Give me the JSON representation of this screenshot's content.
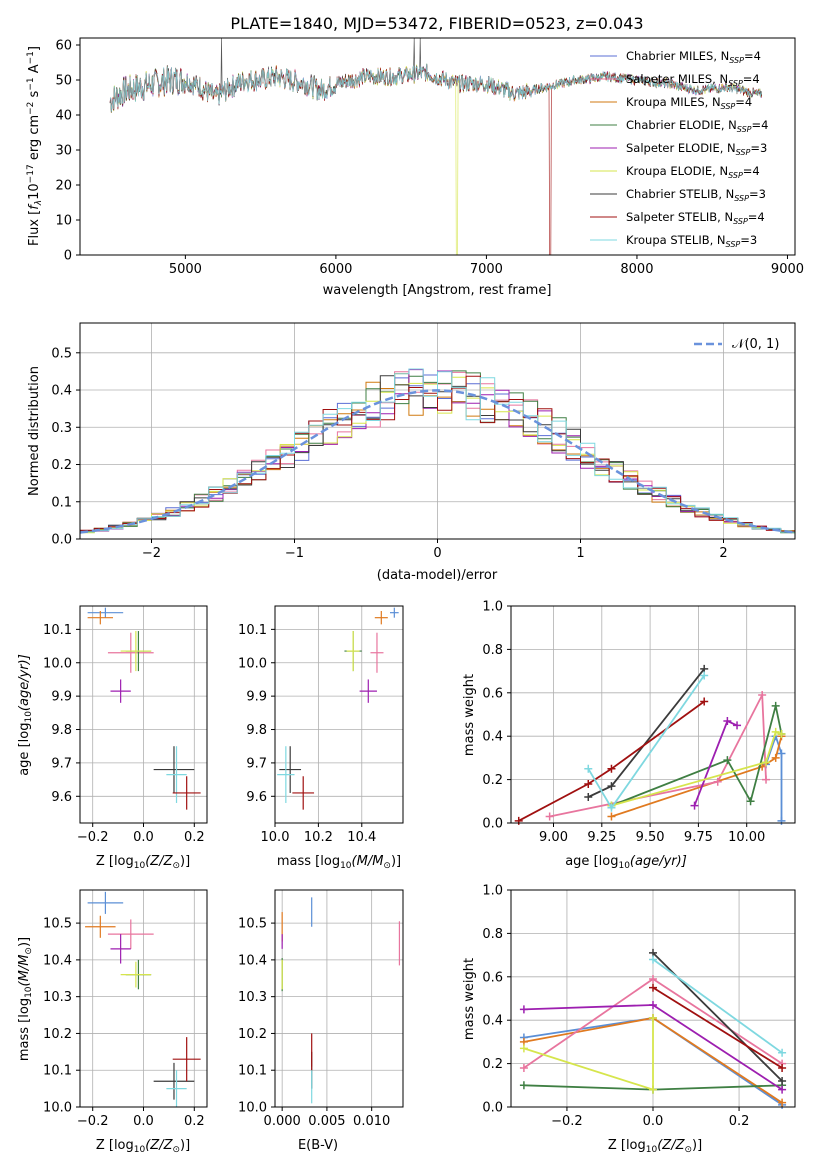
{
  "chart_data": [
    {
      "type": "line",
      "title": "PLATE=1840, MJD=53472, FIBERID=0523, z=0.043",
      "xlabel": "wavelength [Angstrom, rest frame]",
      "ylabel_parts": {
        "a": "Flux [",
        "b": "f",
        "c": "λ",
        "d": "10",
        "e": "−17",
        "f": " erg cm",
        "g": "−2",
        "h": " s",
        "i": "−1",
        "j": " A",
        "k": "−1",
        "l": "]"
      },
      "xlim": [
        4300,
        9050
      ],
      "ylim": [
        0,
        62
      ],
      "xticks": [
        5000,
        6000,
        7000,
        8000,
        9000
      ],
      "yticks": [
        0,
        10,
        20,
        30,
        40,
        50,
        60
      ],
      "spectrum_shape": {
        "x": [
          4500,
          4600,
          4700,
          4800,
          4900,
          5000,
          5100,
          5200,
          5300,
          5400,
          5500,
          5600,
          5700,
          5800,
          5900,
          6000,
          6200,
          6400,
          6600,
          6800,
          7000,
          7200,
          7400,
          7600,
          7800,
          8000,
          8200,
          8400,
          8600,
          8800
        ],
        "y": [
          44,
          47,
          48,
          49,
          50,
          50,
          48,
          45,
          48,
          50,
          50,
          51,
          50,
          49,
          47,
          49,
          51,
          51,
          52,
          49,
          49,
          46,
          48,
          50,
          51,
          50,
          49,
          47,
          48,
          46
        ]
      },
      "series": [
        {
          "name_a": "Chabrier MILES, N",
          "name_sub": "SSP",
          "name_b": "=4",
          "color": "#5b6fd6"
        },
        {
          "name_a": "Salpeter MILES, N",
          "name_sub": "SSP",
          "name_b": "=4",
          "color": "#e8759e"
        },
        {
          "name_a": "Kroupa MILES, N",
          "name_sub": "SSP",
          "name_b": "=4",
          "color": "#d07a10"
        },
        {
          "name_a": "Chabrier ELODIE, N",
          "name_sub": "SSP",
          "name_b": "=4",
          "color": "#3f7f43"
        },
        {
          "name_a": "Salpeter ELODIE, N",
          "name_sub": "SSP",
          "name_b": "=3",
          "color": "#9d1fb0"
        },
        {
          "name_a": "Kroupa ELODIE, N",
          "name_sub": "SSP",
          "name_b": "=4",
          "color": "#d6e54c"
        },
        {
          "name_a": "Chabrier STELIB, N",
          "name_sub": "SSP",
          "name_b": "=3",
          "color": "#3b3b3b"
        },
        {
          "name_a": "Salpeter STELIB, N",
          "name_sub": "SSP",
          "name_b": "=4",
          "color": "#a01010"
        },
        {
          "name_a": "Kroupa STELIB, N",
          "name_sub": "SSP",
          "name_b": "=3",
          "color": "#7fd8e0"
        }
      ]
    },
    {
      "type": "histogram",
      "xlabel": "(data-model)/error",
      "ylabel": "Normed distribution",
      "xlim": [
        -2.5,
        2.5
      ],
      "ylim": [
        0,
        0.58
      ],
      "xticks": [
        -2,
        -1,
        0,
        1,
        2
      ],
      "xtick_labels": [
        "−2",
        "−1",
        "0",
        "1",
        "2"
      ],
      "yticks": [
        0.0,
        0.1,
        0.2,
        0.3,
        0.4,
        0.5
      ],
      "ytick_labels": [
        "0.0",
        "0.1",
        "0.2",
        "0.3",
        "0.4",
        "0.5"
      ],
      "bin_width": 0.1,
      "legend": "𝒩(0, 1)",
      "grid": true
    },
    {
      "type": "scatter",
      "name": "age-vs-Z",
      "xlabel_a": "Z [",
      "xlabel_b": "log",
      "xlabel_c": "10",
      "xlabel_d": "(Z/Z",
      "xlabel_e": "⊙",
      "xlabel_f": ")]",
      "ylabel_a": "age  [",
      "ylabel_b": "log",
      "ylabel_c": "10",
      "ylabel_d": "(age/yr)]",
      "xlim": [
        -0.25,
        0.25
      ],
      "ylim": [
        9.52,
        10.17
      ],
      "xticks": [
        -0.2,
        0.0,
        0.2
      ],
      "xtick_labels": [
        "−0.2",
        "0.0",
        "0.2"
      ],
      "yticks": [
        9.6,
        9.7,
        9.8,
        9.9,
        10.0,
        10.1
      ],
      "ytick_labels": [
        "9.6",
        "9.7",
        "9.8",
        "9.9",
        "10.0",
        "10.1"
      ],
      "points": [
        {
          "x": -0.15,
          "y": 10.15,
          "xerr": 0.07,
          "yerr": 0.015,
          "color": "#5b8fd6"
        },
        {
          "x": -0.17,
          "y": 10.135,
          "xerr": 0.05,
          "yerr": 0.02,
          "color": "#e07a20"
        },
        {
          "x": -0.05,
          "y": 10.03,
          "xerr": 0.09,
          "yerr": 0.06,
          "color": "#e8759e"
        },
        {
          "x": -0.02,
          "y": 10.035,
          "xerr": 0.05,
          "yerr": 0.06,
          "color": "#3f7f43"
        },
        {
          "x": -0.03,
          "y": 10.035,
          "xerr": 0.06,
          "yerr": 0.06,
          "color": "#d6e54c"
        },
        {
          "x": -0.09,
          "y": 9.915,
          "xerr": 0.04,
          "yerr": 0.035,
          "color": "#9d1fb0"
        },
        {
          "x": 0.12,
          "y": 9.68,
          "xerr": 0.08,
          "yerr": 0.07,
          "color": "#3b3b3b"
        },
        {
          "x": 0.13,
          "y": 9.665,
          "xerr": 0.04,
          "yerr": 0.085,
          "color": "#7fd8e0"
        },
        {
          "x": 0.17,
          "y": 9.61,
          "xerr": 0.055,
          "yerr": 0.05,
          "color": "#a01010"
        }
      ]
    },
    {
      "type": "scatter",
      "name": "age-vs-mass",
      "xlabel_a": "mass [",
      "xlabel_b": "log",
      "xlabel_c": "10",
      "xlabel_d": "(M/M",
      "xlabel_e": "⊙",
      "xlabel_f": ")]",
      "xlim": [
        10.0,
        10.59
      ],
      "ylim": [
        9.52,
        10.17
      ],
      "xticks": [
        10.0,
        10.2,
        10.4
      ],
      "xtick_labels": [
        "10.0",
        "10.2",
        "10.4"
      ],
      "yticks": [
        9.6,
        9.7,
        9.8,
        9.9,
        10.0,
        10.1
      ],
      "ytick_labels": [
        "9.6",
        "9.7",
        "9.8",
        "9.9",
        "10.0",
        "10.1"
      ],
      "points": [
        {
          "x": 10.55,
          "y": 10.15,
          "xerr": 0.02,
          "yerr": 0.015,
          "color": "#5b8fd6"
        },
        {
          "x": 10.49,
          "y": 10.135,
          "xerr": 0.03,
          "yerr": 0.02,
          "color": "#e07a20"
        },
        {
          "x": 10.47,
          "y": 10.03,
          "xerr": 0.03,
          "yerr": 0.06,
          "color": "#e8759e"
        },
        {
          "x": 10.36,
          "y": 10.035,
          "xerr": 0.04,
          "yerr": 0.06,
          "color": "#3f7f43"
        },
        {
          "x": 10.36,
          "y": 10.035,
          "xerr": 0.03,
          "yerr": 0.06,
          "color": "#d6e54c"
        },
        {
          "x": 10.43,
          "y": 9.915,
          "xerr": 0.04,
          "yerr": 0.035,
          "color": "#9d1fb0"
        },
        {
          "x": 10.07,
          "y": 9.68,
          "xerr": 0.05,
          "yerr": 0.07,
          "color": "#3b3b3b"
        },
        {
          "x": 10.05,
          "y": 9.665,
          "xerr": 0.04,
          "yerr": 0.085,
          "color": "#7fd8e0"
        },
        {
          "x": 10.13,
          "y": 9.61,
          "xerr": 0.05,
          "yerr": 0.05,
          "color": "#a01010"
        }
      ]
    },
    {
      "type": "line",
      "name": "mass-weight-vs-age",
      "xlabel_a": "age  [",
      "xlabel_b": "log",
      "xlabel_c": "10",
      "xlabel_d": "(age/yr)]",
      "ylabel": "mass weight",
      "xlim": [
        8.78,
        10.25
      ],
      "ylim": [
        0,
        1.0
      ],
      "xticks": [
        9.0,
        9.25,
        9.5,
        9.75,
        10.0
      ],
      "xtick_labels": [
        "9.00",
        "9.25",
        "9.50",
        "9.75",
        "10.00"
      ],
      "yticks": [
        0.0,
        0.2,
        0.4,
        0.6,
        0.8,
        1.0
      ],
      "ytick_labels": [
        "0.0",
        "0.2",
        "0.4",
        "0.6",
        "0.8",
        "1.0"
      ],
      "grid": true,
      "series": [
        {
          "color": "#5b8fd6",
          "x": [
            10.18,
            10.18,
            10.15,
            10.1
          ],
          "y": [
            0.01,
            0.32,
            0.4,
            0.27
          ]
        },
        {
          "color": "#e07a20",
          "x": [
            9.3,
            10.08,
            10.15,
            10.18
          ],
          "y": [
            0.03,
            0.26,
            0.3,
            0.4
          ]
        },
        {
          "color": "#e8759e",
          "x": [
            8.98,
            9.85,
            10.08,
            10.1
          ],
          "y": [
            0.03,
            0.19,
            0.59,
            0.2
          ]
        },
        {
          "color": "#3f7f43",
          "x": [
            9.3,
            9.9,
            10.02,
            10.15,
            10.18
          ],
          "y": [
            0.08,
            0.29,
            0.1,
            0.54,
            0.41
          ]
        },
        {
          "color": "#9d1fb0",
          "x": [
            9.73,
            9.9,
            9.95
          ],
          "y": [
            0.08,
            0.47,
            0.45
          ]
        },
        {
          "color": "#d6e54c",
          "x": [
            9.3,
            10.1,
            10.15,
            10.18
          ],
          "y": [
            0.08,
            0.28,
            0.42,
            0.41
          ]
        },
        {
          "color": "#3b3b3b",
          "x": [
            9.18,
            9.3,
            9.78
          ],
          "y": [
            0.12,
            0.17,
            0.71
          ]
        },
        {
          "color": "#a01010",
          "x": [
            8.82,
            9.18,
            9.3,
            9.78
          ],
          "y": [
            0.01,
            0.18,
            0.25,
            0.56
          ]
        },
        {
          "color": "#7fd8e0",
          "x": [
            9.18,
            9.3,
            9.78
          ],
          "y": [
            0.25,
            0.07,
            0.68
          ]
        }
      ]
    },
    {
      "type": "scatter",
      "name": "mass-vs-Z",
      "xlabel_a": "Z [",
      "xlabel_b": "log",
      "xlabel_c": "10",
      "xlabel_d": "(Z/Z",
      "xlabel_e": "⊙",
      "xlabel_f": ")]",
      "ylabel_a": "mass [",
      "ylabel_b": "log",
      "ylabel_c": "10",
      "ylabel_d": "(M/M",
      "ylabel_e": "⊙",
      "ylabel_f": ")]",
      "xlim": [
        -0.25,
        0.25
      ],
      "ylim": [
        10.0,
        10.59
      ],
      "xticks": [
        -0.2,
        0.0,
        0.2
      ],
      "xtick_labels": [
        "−0.2",
        "0.0",
        "0.2"
      ],
      "yticks": [
        10.0,
        10.1,
        10.2,
        10.3,
        10.4,
        10.5
      ],
      "ytick_labels": [
        "10.0",
        "10.1",
        "10.2",
        "10.3",
        "10.4",
        "10.5"
      ],
      "points": [
        {
          "x": -0.15,
          "y": 10.555,
          "xerr": 0.07,
          "yerr": 0.03,
          "color": "#5b8fd6"
        },
        {
          "x": -0.17,
          "y": 10.49,
          "xerr": 0.06,
          "yerr": 0.03,
          "color": "#e07a20"
        },
        {
          "x": -0.05,
          "y": 10.47,
          "xerr": 0.09,
          "yerr": 0.04,
          "color": "#e8759e"
        },
        {
          "x": -0.02,
          "y": 10.36,
          "xerr": 0.05,
          "yerr": 0.04,
          "color": "#3f7f43"
        },
        {
          "x": -0.03,
          "y": 10.36,
          "xerr": 0.06,
          "yerr": 0.035,
          "color": "#d6e54c"
        },
        {
          "x": -0.09,
          "y": 10.43,
          "xerr": 0.04,
          "yerr": 0.04,
          "color": "#9d1fb0"
        },
        {
          "x": 0.12,
          "y": 10.07,
          "xerr": 0.08,
          "yerr": 0.05,
          "color": "#3b3b3b"
        },
        {
          "x": 0.13,
          "y": 10.05,
          "xerr": 0.04,
          "yerr": 0.05,
          "color": "#7fd8e0"
        },
        {
          "x": 0.17,
          "y": 10.13,
          "xerr": 0.055,
          "yerr": 0.06,
          "color": "#a01010"
        }
      ]
    },
    {
      "type": "scatter",
      "name": "mass-vs-EBV",
      "xlabel": "E(B-V)",
      "xlim": [
        -0.0008,
        0.0135
      ],
      "ylim": [
        10.0,
        10.59
      ],
      "xticks": [
        0.0,
        0.005,
        0.01
      ],
      "xtick_labels": [
        "0.000",
        "0.005",
        "0.010"
      ],
      "yticks": [
        10.0,
        10.1,
        10.2,
        10.3,
        10.4,
        10.5
      ],
      "ytick_labels": [
        "10.0",
        "10.1",
        "10.2",
        "10.3",
        "10.4",
        "10.5"
      ],
      "points": [
        {
          "x": 0.0033,
          "y": 10.53,
          "xerr": 0,
          "yerr": 0.04,
          "color": "#5b8fd6"
        },
        {
          "x": 0.0,
          "y": 10.49,
          "xerr": 0,
          "yerr": 0.04,
          "color": "#e07a20"
        },
        {
          "x": 0.0131,
          "y": 10.445,
          "xerr": 0,
          "yerr": 0.06,
          "color": "#e8759e"
        },
        {
          "x": 0.0,
          "y": 10.36,
          "xerr": 0,
          "yerr": 0.045,
          "color": "#3f7f43"
        },
        {
          "x": 0.0,
          "y": 10.36,
          "xerr": 0,
          "yerr": 0.04,
          "color": "#d6e54c"
        },
        {
          "x": 0.0,
          "y": 10.45,
          "xerr": 0,
          "yerr": 0.02,
          "color": "#9d1fb0"
        },
        {
          "x": 0.0033,
          "y": 10.1,
          "xerr": 0,
          "yerr": 0.05,
          "color": "#3b3b3b"
        },
        {
          "x": 0.0033,
          "y": 10.06,
          "xerr": 0,
          "yerr": 0.05,
          "color": "#7fd8e0"
        },
        {
          "x": 0.0033,
          "y": 10.15,
          "xerr": 0,
          "yerr": 0.05,
          "color": "#a01010"
        }
      ]
    },
    {
      "type": "line",
      "name": "mass-weight-vs-Z",
      "xlabel_a": "Z [",
      "xlabel_b": "log",
      "xlabel_c": "10",
      "xlabel_d": "(Z/Z",
      "xlabel_e": "⊙",
      "xlabel_f": ")]",
      "ylabel": "mass weight",
      "xlim": [
        -0.33,
        0.33
      ],
      "ylim": [
        0,
        1.0
      ],
      "xticks": [
        -0.2,
        0.0,
        0.2
      ],
      "xtick_labels": [
        "−0.2",
        "0.0",
        "0.2"
      ],
      "yticks": [
        0.0,
        0.2,
        0.4,
        0.6,
        0.8,
        1.0
      ],
      "ytick_labels": [
        "0.0",
        "0.2",
        "0.4",
        "0.6",
        "0.8",
        "1.0"
      ],
      "grid": true,
      "series": [
        {
          "color": "#5b8fd6",
          "x": [
            -0.3,
            0.0,
            0.3
          ],
          "y": [
            0.32,
            0.41,
            0.01
          ]
        },
        {
          "color": "#e07a20",
          "x": [
            -0.3,
            0.0,
            0.3
          ],
          "y": [
            0.3,
            0.41,
            0.02
          ]
        },
        {
          "color": "#e8759e",
          "x": [
            -0.3,
            0.0,
            0.3
          ],
          "y": [
            0.18,
            0.59,
            0.2
          ]
        },
        {
          "color": "#3f7f43",
          "x": [
            -0.3,
            0.0,
            0.3
          ],
          "y": [
            0.1,
            0.08,
            0.1
          ]
        },
        {
          "color": "#9d1fb0",
          "x": [
            -0.3,
            0.0,
            0.3
          ],
          "y": [
            0.45,
            0.47,
            0.08
          ]
        },
        {
          "color": "#d6e54c",
          "x": [
            -0.3,
            0.0,
            0.0
          ],
          "y": [
            0.27,
            0.08,
            0.41
          ]
        },
        {
          "color": "#3b3b3b",
          "x": [
            0.0,
            0.3
          ],
          "y": [
            0.71,
            0.12
          ]
        },
        {
          "color": "#a01010",
          "x": [
            0.0,
            0.3
          ],
          "y": [
            0.55,
            0.18
          ]
        },
        {
          "color": "#7fd8e0",
          "x": [
            0.0,
            0.3
          ],
          "y": [
            0.68,
            0.25
          ]
        }
      ]
    }
  ]
}
